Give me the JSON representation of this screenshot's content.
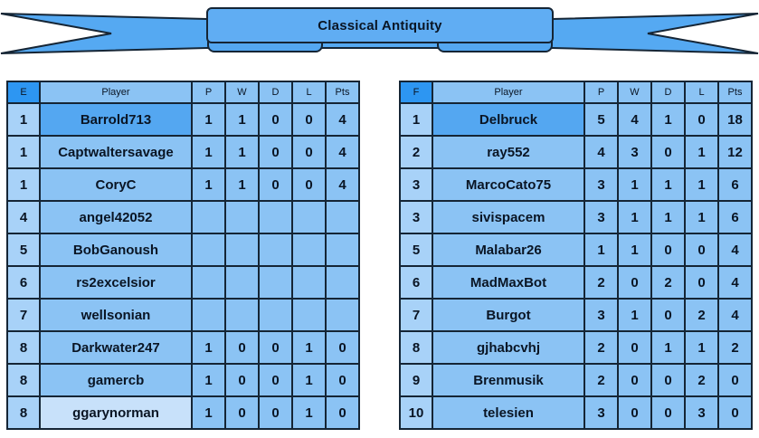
{
  "banner": {
    "title": "Classical Antiquity"
  },
  "tables": [
    {
      "group": "E",
      "headers": {
        "player": "Player",
        "p": "P",
        "w": "W",
        "d": "D",
        "l": "L",
        "pts": "Pts"
      },
      "rows": [
        {
          "rank": "1",
          "player": "Barrold713",
          "p": "1",
          "w": "1",
          "d": "0",
          "l": "0",
          "pts": "4",
          "hl": "primary"
        },
        {
          "rank": "1",
          "player": "Captwaltersavage",
          "p": "1",
          "w": "1",
          "d": "0",
          "l": "0",
          "pts": "4",
          "hl": ""
        },
        {
          "rank": "1",
          "player": "CoryC",
          "p": "1",
          "w": "1",
          "d": "0",
          "l": "0",
          "pts": "4",
          "hl": ""
        },
        {
          "rank": "4",
          "player": "angel42052",
          "p": "",
          "w": "",
          "d": "",
          "l": "",
          "pts": "",
          "hl": ""
        },
        {
          "rank": "5",
          "player": "BobGanoush",
          "p": "",
          "w": "",
          "d": "",
          "l": "",
          "pts": "",
          "hl": ""
        },
        {
          "rank": "6",
          "player": "rs2excelsior",
          "p": "",
          "w": "",
          "d": "",
          "l": "",
          "pts": "",
          "hl": ""
        },
        {
          "rank": "7",
          "player": "wellsonian",
          "p": "",
          "w": "",
          "d": "",
          "l": "",
          "pts": "",
          "hl": ""
        },
        {
          "rank": "8",
          "player": "Darkwater247",
          "p": "1",
          "w": "0",
          "d": "0",
          "l": "1",
          "pts": "0",
          "hl": ""
        },
        {
          "rank": "8",
          "player": "gamercb",
          "p": "1",
          "w": "0",
          "d": "0",
          "l": "1",
          "pts": "0",
          "hl": ""
        },
        {
          "rank": "8",
          "player": "ggarynorman",
          "p": "1",
          "w": "0",
          "d": "0",
          "l": "1",
          "pts": "0",
          "hl": "pale"
        }
      ]
    },
    {
      "group": "F",
      "headers": {
        "player": "Player",
        "p": "P",
        "w": "W",
        "d": "D",
        "l": "L",
        "pts": "Pts"
      },
      "rows": [
        {
          "rank": "1",
          "player": "Delbruck",
          "p": "5",
          "w": "4",
          "d": "1",
          "l": "0",
          "pts": "18",
          "hl": "primary"
        },
        {
          "rank": "2",
          "player": "ray552",
          "p": "4",
          "w": "3",
          "d": "0",
          "l": "1",
          "pts": "12",
          "hl": ""
        },
        {
          "rank": "3",
          "player": "MarcoCato75",
          "p": "3",
          "w": "1",
          "d": "1",
          "l": "1",
          "pts": "6",
          "hl": ""
        },
        {
          "rank": "3",
          "player": "sivispacem",
          "p": "3",
          "w": "1",
          "d": "1",
          "l": "1",
          "pts": "6",
          "hl": ""
        },
        {
          "rank": "5",
          "player": "Malabar26",
          "p": "1",
          "w": "1",
          "d": "0",
          "l": "0",
          "pts": "4",
          "hl": ""
        },
        {
          "rank": "6",
          "player": "MadMaxBot",
          "p": "2",
          "w": "0",
          "d": "2",
          "l": "0",
          "pts": "4",
          "hl": ""
        },
        {
          "rank": "7",
          "player": "Burgot",
          "p": "3",
          "w": "1",
          "d": "0",
          "l": "2",
          "pts": "4",
          "hl": ""
        },
        {
          "rank": "8",
          "player": "gjhabcvhj",
          "p": "2",
          "w": "0",
          "d": "1",
          "l": "1",
          "pts": "2",
          "hl": ""
        },
        {
          "rank": "9",
          "player": "Brenmusik",
          "p": "2",
          "w": "0",
          "d": "0",
          "l": "2",
          "pts": "0",
          "hl": ""
        },
        {
          "rank": "10",
          "player": "telesien",
          "p": "3",
          "w": "0",
          "d": "0",
          "l": "3",
          "pts": "0",
          "hl": ""
        }
      ]
    }
  ],
  "colors": {
    "ribbon_band": "#55a9f2",
    "title_panel": "#60adf3",
    "cell": "#8bc3f4",
    "rank_cell": "#a8d2f8",
    "group_header": "#2d96f2",
    "highlight_primary": "#54a7f1",
    "highlight_pale": "#c8e1fa",
    "border": "#152535",
    "text": "#0a1524"
  }
}
